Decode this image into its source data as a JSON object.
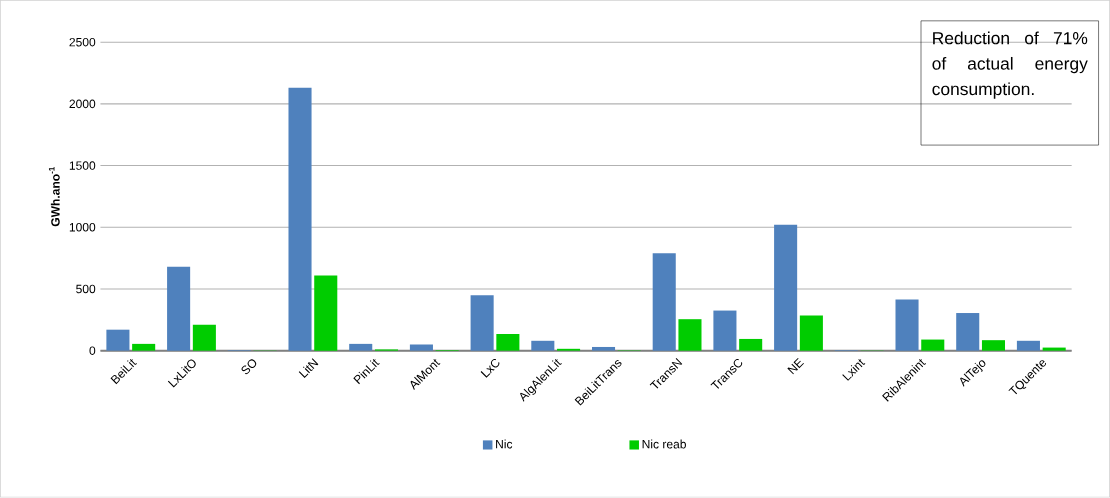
{
  "chart_data": {
    "type": "bar",
    "ylabel": "GWh.ano$^{-1}$",
    "categories": [
      "BeiLit",
      "LxLitO",
      "SO",
      "LitN",
      "PinLit",
      "AlMont",
      "LxC",
      "AlgAlenLit",
      "BeiLitTrans",
      "TransN",
      "TransC",
      "NE",
      "Lxint",
      "RibAlenint",
      "AlTejo",
      "TQuente"
    ],
    "series": [
      {
        "name": "Nic",
        "color": "#4f81bd",
        "values": [
          170,
          680,
          5,
          2130,
          55,
          50,
          450,
          80,
          30,
          790,
          325,
          1020,
          5,
          415,
          305,
          80
        ]
      },
      {
        "name": "Nic reab",
        "color": "#00cc00",
        "values": [
          55,
          210,
          2,
          610,
          10,
          5,
          135,
          15,
          3,
          255,
          95,
          285,
          2,
          90,
          85,
          25
        ]
      }
    ],
    "ylim": [
      0,
      2500
    ],
    "yticks": [
      0,
      500,
      1000,
      1500,
      2000,
      2500
    ],
    "grid": "y",
    "legend": "bottom",
    "annotations": [
      "Reduction of 71% of actual energy consumption."
    ]
  }
}
